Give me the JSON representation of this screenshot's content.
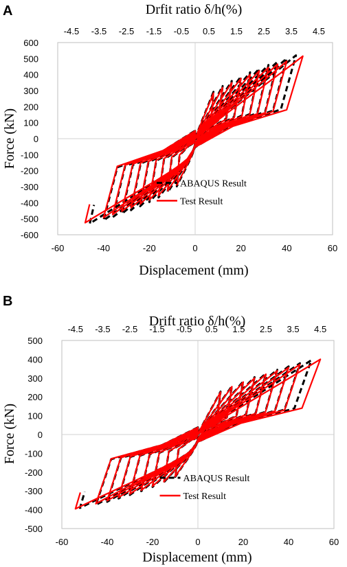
{
  "chart_data": [
    {
      "panel": "A",
      "type": "line",
      "title": "Drfit ratio δ/h(%)",
      "xlabel": "Displacement (mm)",
      "ylabel": "Force (kN)",
      "xlim": [
        -60,
        60
      ],
      "ylim": [
        -600,
        600
      ],
      "x_ticks": [
        "-60",
        "-40",
        "-20",
        "0",
        "20",
        "40",
        "60"
      ],
      "y_ticks": [
        "600",
        "500",
        "400",
        "300",
        "200",
        "100",
        "0",
        "-100",
        "-200",
        "-300",
        "-400",
        "-500",
        "-600"
      ],
      "top_ticks": [
        "-4.5",
        "-3.5",
        "-2.5",
        "-1.5",
        "-0.5",
        "0.5",
        "1.5",
        "2.5",
        "3.5",
        "4.5"
      ],
      "grid": false,
      "legend_position": "bottom-right",
      "series": [
        {
          "name": "ABAQUS Result",
          "color": "#000000",
          "style": "dashed",
          "amplitudes": [
            8,
            12,
            16,
            20,
            24,
            28,
            32,
            36,
            40,
            44
          ],
          "peak_force": 520,
          "min_displacement": -46,
          "min_force": -530
        },
        {
          "name": "Test Result",
          "color": "#ff0000",
          "style": "solid",
          "amplitudes": [
            8,
            12,
            16,
            20,
            24,
            28,
            32,
            36,
            40,
            47
          ],
          "peak_force": 515,
          "min_displacement": -48,
          "min_force": -525
        }
      ]
    },
    {
      "panel": "B",
      "type": "line",
      "title": "Drift ratio δ/h(%)",
      "xlabel": "Displacement (mm)",
      "ylabel": "Force (kN)",
      "xlim": [
        -60,
        60
      ],
      "ylim": [
        -500,
        500
      ],
      "x_ticks": [
        "-60",
        "-40",
        "-20",
        "0",
        "20",
        "40",
        "60"
      ],
      "y_ticks": [
        "500",
        "400",
        "300",
        "200",
        "100",
        "0",
        "-100",
        "-200",
        "-300",
        "-400",
        "-500"
      ],
      "top_ticks": [
        "-4.5",
        "-3.5",
        "-2.5",
        "-1.5",
        "-0.5",
        "0.5",
        "1.5",
        "2.5",
        "3.5",
        "4.5"
      ],
      "grid": false,
      "legend_position": "bottom-right",
      "series": [
        {
          "name": "ABAQUS Result",
          "color": "#000000",
          "style": "dashed",
          "amplitudes": [
            10,
            15,
            20,
            25,
            30,
            35,
            40,
            45,
            50
          ],
          "peak_force": 395,
          "min_displacement": -52,
          "min_force": -390
        },
        {
          "name": "Test Result",
          "color": "#ff0000",
          "style": "solid",
          "amplitudes": [
            10,
            15,
            20,
            25,
            30,
            35,
            40,
            45,
            54
          ],
          "peak_force": 400,
          "min_displacement": -54,
          "min_force": -395
        }
      ]
    }
  ],
  "legend": {
    "abaqus_label": "ABAQUS Result",
    "test_label": "Test Result"
  },
  "panels": {
    "a_letter": "A",
    "b_letter": "B"
  }
}
